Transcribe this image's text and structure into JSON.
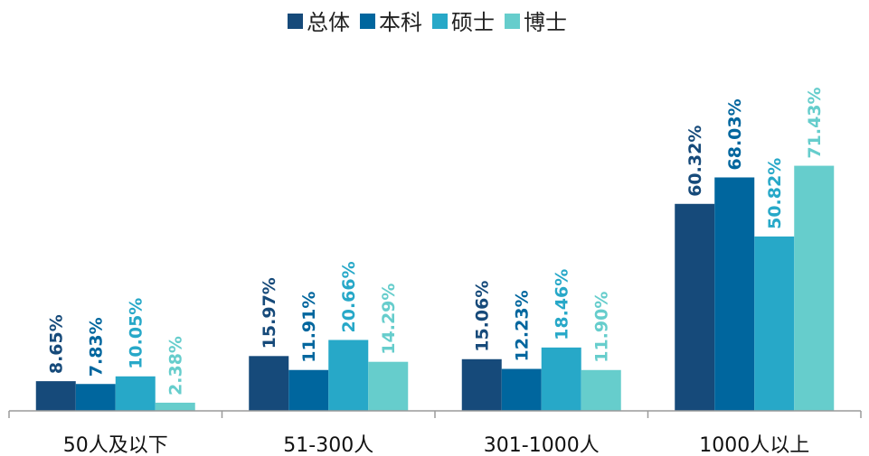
{
  "chart_data": {
    "type": "bar",
    "categories": [
      "50人及以下",
      "51-300人",
      "301-1000人",
      "1000人以上"
    ],
    "series": [
      {
        "name": "总体",
        "color": "#164a7a",
        "values": [
          8.65,
          15.97,
          15.06,
          60.32
        ],
        "labels": [
          "8.65%",
          "15.97%",
          "15.06%",
          "60.32%"
        ]
      },
      {
        "name": "本科",
        "color": "#00669e",
        "values": [
          7.83,
          11.91,
          12.23,
          68.03
        ],
        "labels": [
          "7.83%",
          "11.91%",
          "12.23%",
          "68.03%"
        ]
      },
      {
        "name": "硕士",
        "color": "#27a8c8",
        "values": [
          10.05,
          20.66,
          18.46,
          50.82
        ],
        "labels": [
          "10.05%",
          "20.66%",
          "18.46%",
          "50.82%"
        ]
      },
      {
        "name": "博士",
        "color": "#66cdcc",
        "values": [
          2.38,
          14.29,
          11.9,
          71.43
        ],
        "labels": [
          "2.38%",
          "14.29%",
          "11.90%",
          "71.43%"
        ]
      }
    ],
    "legend_position": "top-center",
    "grid": false,
    "ylim": [
      0,
      100
    ]
  }
}
